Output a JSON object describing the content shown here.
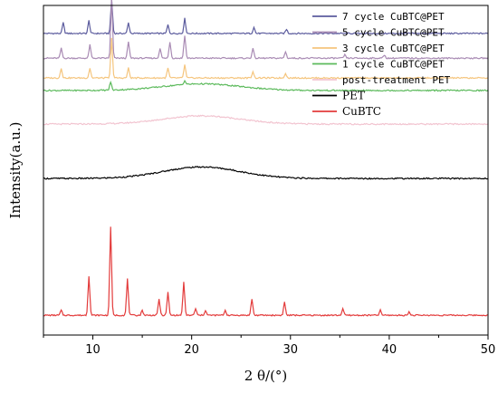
{
  "chart_data": {
    "type": "line",
    "title": "",
    "xlabel": "2 θ/(°)",
    "ylabel": "Intensity(a.u.)",
    "xlim": [
      5,
      50
    ],
    "x_ticks": [
      "10",
      "20",
      "30",
      "40",
      "50"
    ],
    "y_ticks_labeled": false,
    "grid": false,
    "legend_position": "top-right",
    "series": [
      {
        "name": "7 cycle CuBTC@PET",
        "color": "#5c5c9e",
        "baseline": 0.915,
        "broad_hump": 0.0,
        "peak_scale": 0.65,
        "peaks": [
          [
            7.0,
            0.05
          ],
          [
            9.6,
            0.06
          ],
          [
            11.9,
            0.16
          ],
          [
            13.6,
            0.05
          ],
          [
            17.6,
            0.04
          ],
          [
            19.3,
            0.07
          ],
          [
            26.3,
            0.03
          ],
          [
            29.6,
            0.02
          ]
        ]
      },
      {
        "name": "5 cycle CuBTC@PET",
        "color": "#a98bb4",
        "baseline": 0.84,
        "broad_hump": 0.0,
        "peak_scale": 1.0,
        "peaks": [
          [
            6.8,
            0.03
          ],
          [
            9.7,
            0.04
          ],
          [
            11.9,
            0.18
          ],
          [
            13.6,
            0.05
          ],
          [
            16.8,
            0.03
          ],
          [
            17.8,
            0.05
          ],
          [
            19.3,
            0.07
          ],
          [
            26.2,
            0.03
          ],
          [
            29.5,
            0.02
          ],
          [
            35.5,
            0.01
          ],
          [
            39.5,
            0.01
          ]
        ]
      },
      {
        "name": "3 cycle CuBTC@PET",
        "color": "#f5c57d",
        "baseline": 0.78,
        "broad_hump": 0.0,
        "peak_scale": 1.0,
        "peaks": [
          [
            6.8,
            0.03
          ],
          [
            9.7,
            0.03
          ],
          [
            11.9,
            0.12
          ],
          [
            13.6,
            0.03
          ],
          [
            17.6,
            0.03
          ],
          [
            19.3,
            0.04
          ],
          [
            26.2,
            0.02
          ],
          [
            29.5,
            0.015
          ]
        ]
      },
      {
        "name": "1 cycle CuBTC@PET",
        "color": "#5cba5c",
        "baseline": 0.742,
        "broad_hump": 0.02,
        "peak_scale": 1.0,
        "peaks": [
          [
            11.8,
            0.025
          ],
          [
            19.3,
            0.012
          ]
        ]
      },
      {
        "name": "post-treatment PET",
        "color": "#f2c4d0",
        "baseline": 0.64,
        "broad_hump": 0.025,
        "peak_scale": 1.0,
        "peaks": []
      },
      {
        "name": "PET",
        "color": "#000000",
        "baseline": 0.475,
        "broad_hump": 0.035,
        "peak_scale": 1.0,
        "peaks": []
      },
      {
        "name": "CuBTC",
        "color": "#e33b3b",
        "baseline": 0.06,
        "broad_hump": 0.0,
        "peak_scale": 1.0,
        "peaks": [
          [
            6.8,
            0.015
          ],
          [
            9.6,
            0.12
          ],
          [
            11.8,
            0.27
          ],
          [
            13.5,
            0.11
          ],
          [
            15.0,
            0.015
          ],
          [
            16.7,
            0.05
          ],
          [
            17.6,
            0.07
          ],
          [
            19.2,
            0.1
          ],
          [
            20.4,
            0.02
          ],
          [
            21.4,
            0.015
          ],
          [
            23.4,
            0.015
          ],
          [
            26.1,
            0.05
          ],
          [
            29.4,
            0.04
          ],
          [
            35.3,
            0.02
          ],
          [
            39.1,
            0.015
          ],
          [
            42.0,
            0.01
          ]
        ]
      }
    ]
  }
}
